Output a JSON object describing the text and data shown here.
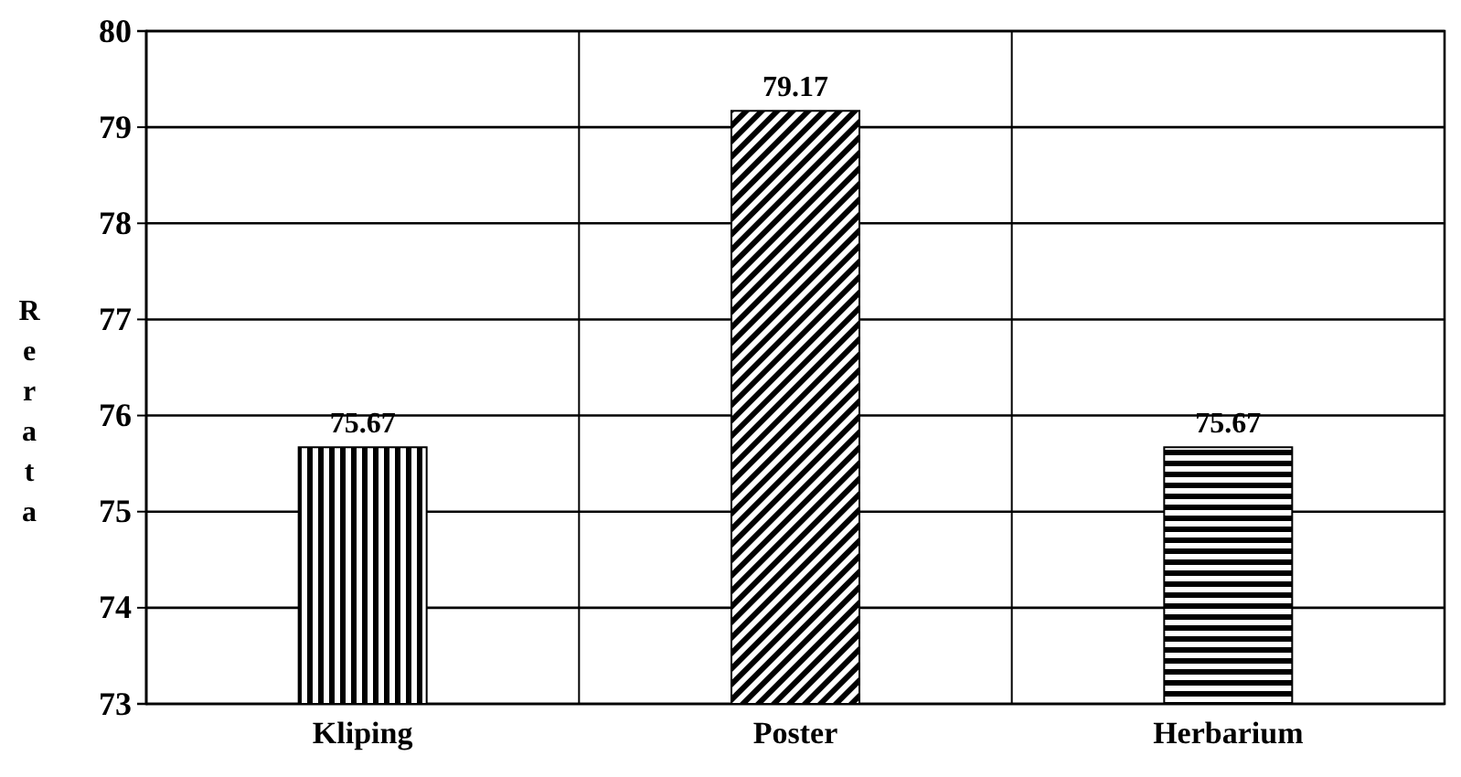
{
  "chart_data": {
    "type": "bar",
    "ylabel": "Rerata",
    "categories": [
      "Kliping",
      "Poster",
      "Herbarium"
    ],
    "values": [
      75.67,
      79.17,
      75.67
    ],
    "colors": [
      "#000000",
      "#000000",
      "#000000"
    ],
    "ylim": [
      73,
      80
    ],
    "yticks": [
      73,
      74,
      75,
      76,
      77,
      78,
      79,
      80
    ],
    "grid": true,
    "data_labels": true
  }
}
